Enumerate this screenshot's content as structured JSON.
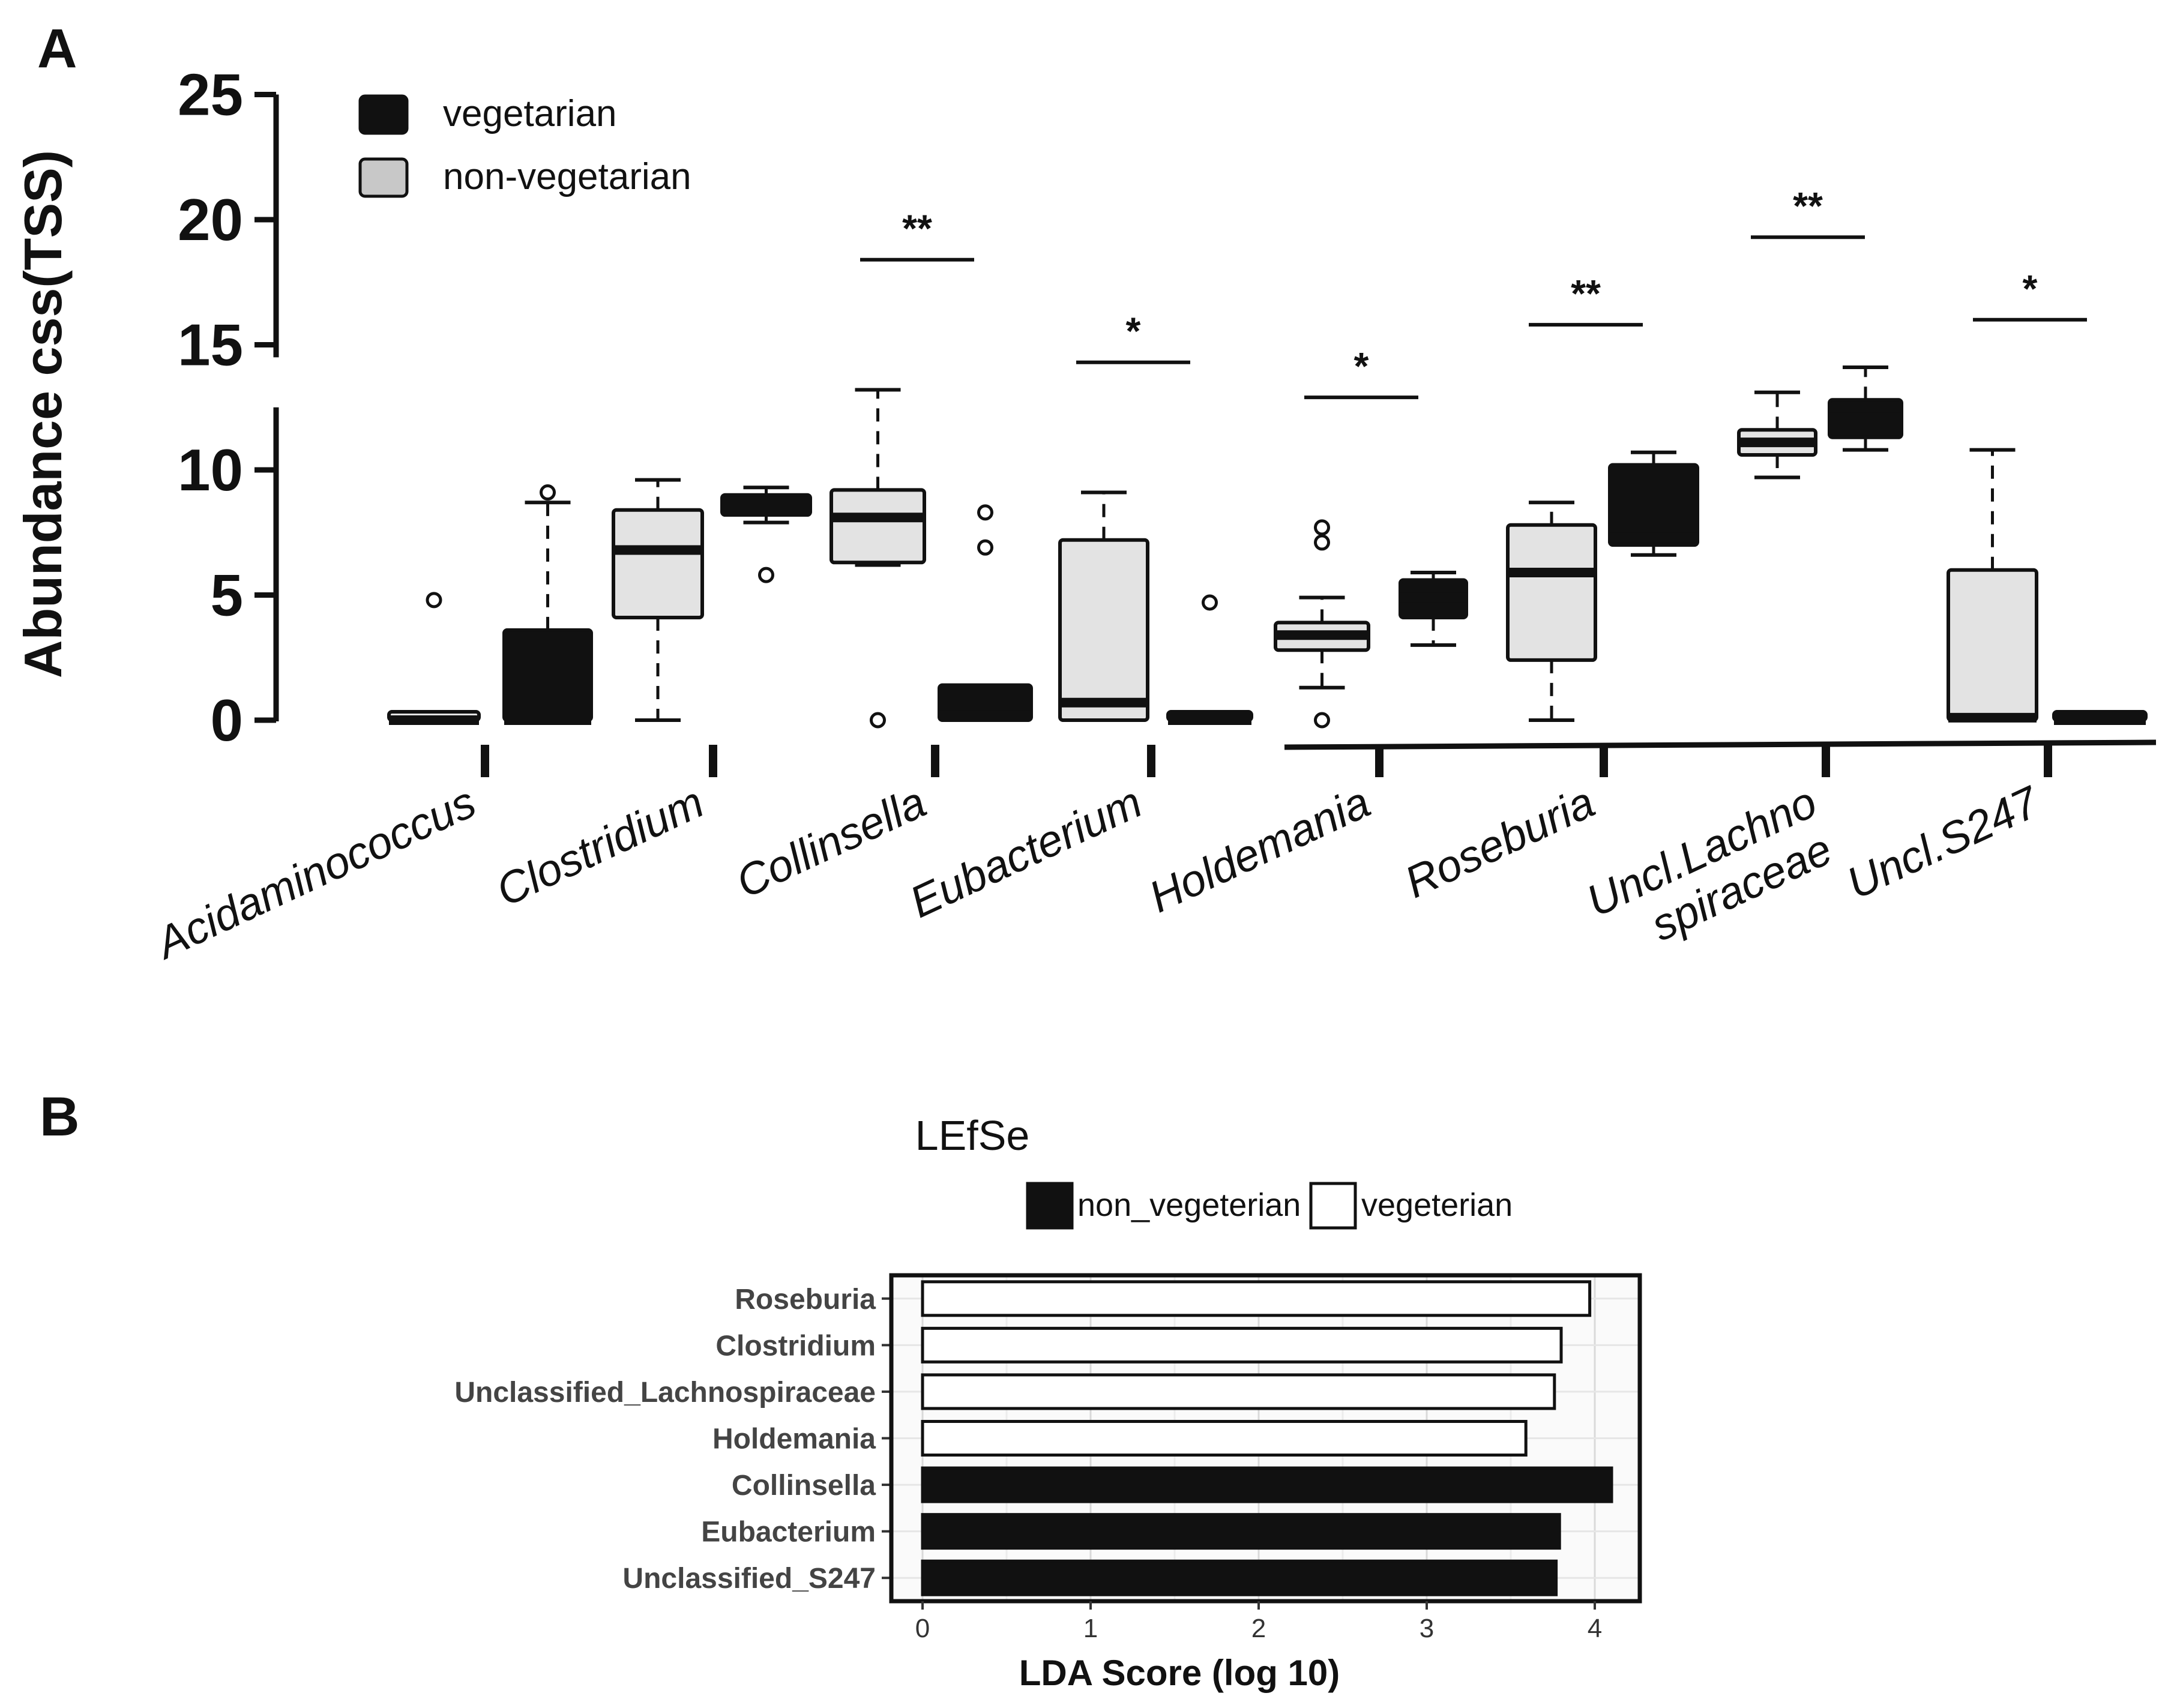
{
  "panels": {
    "a": {
      "letter": "A"
    },
    "b": {
      "letter": "B"
    }
  },
  "chart_data": [
    {
      "type": "box",
      "panel": "A",
      "ylabel": "Abundance css(TSS)",
      "ylim": [
        0,
        25
      ],
      "axis_break": [
        12.5,
        14.5
      ],
      "yticks": [
        0,
        5,
        10,
        15,
        20,
        25
      ],
      "legend": [
        {
          "label": "vegetarian",
          "color": "#111111"
        },
        {
          "label": "non-vegetarian",
          "color": "#c8c8c8"
        }
      ],
      "categories": [
        "Acidaminococcus",
        "Clostridium",
        "Collinsella",
        "Eubacterium",
        "Holdemania",
        "Roseburia",
        "Uncl.Lachno spiraceae",
        "Uncl.S247"
      ],
      "boxes": [
        {
          "genus": "Acidaminococcus",
          "fill": "#e3e3e3",
          "q1": 0,
          "median": 0,
          "q3": 0,
          "lo": 0,
          "hi": 0,
          "outliers": [
            4.8
          ]
        },
        {
          "genus": "Acidaminococcus",
          "fill": "#111111",
          "q1": 0,
          "median": 0,
          "q3": 3.6,
          "lo": 0,
          "hi": 8.7,
          "outliers": [
            9.1
          ]
        },
        {
          "genus": "Clostridium",
          "fill": "#e3e3e3",
          "q1": 4.1,
          "median": 6.8,
          "q3": 8.4,
          "lo": 0,
          "hi": 9.6,
          "outliers": []
        },
        {
          "genus": "Clostridium",
          "fill": "#111111",
          "q1": 8.2,
          "median": 8.5,
          "q3": 9.0,
          "lo": 7.9,
          "hi": 9.3,
          "outliers": [
            5.8
          ]
        },
        {
          "genus": "Collinsella",
          "fill": "#e3e3e3",
          "q1": 6.3,
          "median": 8.1,
          "q3": 9.2,
          "lo": 6.2,
          "hi": 13.2,
          "outliers": [
            0
          ]
        },
        {
          "genus": "Collinsella",
          "fill": "#111111",
          "q1": 0,
          "median": 0.2,
          "q3": 1.4,
          "lo": 0,
          "hi": 1.4,
          "outliers": [
            6.9,
            8.3
          ]
        },
        {
          "genus": "Eubacterium",
          "fill": "#e3e3e3",
          "q1": 0,
          "median": 0.7,
          "q3": 7.2,
          "lo": 0,
          "hi": 9.1,
          "outliers": []
        },
        {
          "genus": "Eubacterium",
          "fill": "#111111",
          "q1": 0,
          "median": 0,
          "q3": 0,
          "lo": 0,
          "hi": 0,
          "outliers": [
            4.7
          ]
        },
        {
          "genus": "Holdemania",
          "fill": "#e3e3e3",
          "q1": 2.8,
          "median": 3.4,
          "q3": 3.9,
          "lo": 1.3,
          "hi": 4.9,
          "outliers": [
            0,
            7.1,
            7.7
          ]
        },
        {
          "genus": "Holdemania",
          "fill": "#111111",
          "q1": 4.1,
          "median": 4.9,
          "q3": 5.6,
          "lo": 3.0,
          "hi": 5.9,
          "outliers": []
        },
        {
          "genus": "Roseburia",
          "fill": "#e3e3e3",
          "q1": 2.4,
          "median": 5.9,
          "q3": 7.8,
          "lo": 0,
          "hi": 8.7,
          "outliers": []
        },
        {
          "genus": "Roseburia",
          "fill": "#111111",
          "q1": 7.0,
          "median": 7.3,
          "q3": 10.2,
          "lo": 6.6,
          "hi": 10.7,
          "outliers": []
        },
        {
          "genus": "Uncl.Lachno spiraceae",
          "fill": "#e3e3e3",
          "q1": 10.6,
          "median": 11.1,
          "q3": 11.6,
          "lo": 9.7,
          "hi": 13.1,
          "outliers": []
        },
        {
          "genus": "Uncl.Lachno spiraceae",
          "fill": "#111111",
          "q1": 11.3,
          "median": 12.1,
          "q3": 12.8,
          "lo": 10.8,
          "hi": 14.1,
          "outliers": []
        },
        {
          "genus": "Uncl.S247",
          "fill": "#e3e3e3",
          "q1": 0,
          "median": 0.1,
          "q3": 6.0,
          "lo": 0,
          "hi": 10.8,
          "outliers": []
        },
        {
          "genus": "Uncl.S247",
          "fill": "#111111",
          "q1": 0,
          "median": 0,
          "q3": 0,
          "lo": 0,
          "hi": 0,
          "outliers": []
        }
      ],
      "significance": [
        {
          "genus": "Collinsella",
          "label": "**",
          "y": 18.4
        },
        {
          "genus": "Eubacterium",
          "label": "*",
          "y": 14.3
        },
        {
          "genus": "Holdemania",
          "label": "*",
          "y": 12.9
        },
        {
          "genus": "Roseburia",
          "label": "**",
          "y": 15.8
        },
        {
          "genus": "Uncl.Lachno spiraceae",
          "label": "**",
          "y": 19.3
        },
        {
          "genus": "Uncl.S247",
          "label": "*",
          "y": 16.0
        }
      ]
    },
    {
      "type": "bar",
      "orientation": "horizontal",
      "panel": "B",
      "title": "LEfSe",
      "xlabel": "LDA Score (log 10)",
      "xlim": [
        0,
        4.3
      ],
      "xticks": [
        0,
        1,
        2,
        3,
        4
      ],
      "legend": [
        {
          "label": "non_vegeterian",
          "color": "#111111"
        },
        {
          "label": "vegeterian",
          "color": "#ffffff"
        }
      ],
      "bars": [
        {
          "label": "Roseburia",
          "value": 3.97,
          "group": "vegeterian"
        },
        {
          "label": "Clostridium",
          "value": 3.8,
          "group": "vegeterian"
        },
        {
          "label": "Unclassified_Lachnospiraceae",
          "value": 3.76,
          "group": "vegeterian"
        },
        {
          "label": "Holdemania",
          "value": 3.59,
          "group": "vegeterian"
        },
        {
          "label": "Collinsella",
          "value": 4.1,
          "group": "non_vegeterian"
        },
        {
          "label": "Eubacterium",
          "value": 3.79,
          "group": "non_vegeterian"
        },
        {
          "label": "Unclassified_S247",
          "value": 3.77,
          "group": "non_vegeterian"
        }
      ]
    }
  ]
}
